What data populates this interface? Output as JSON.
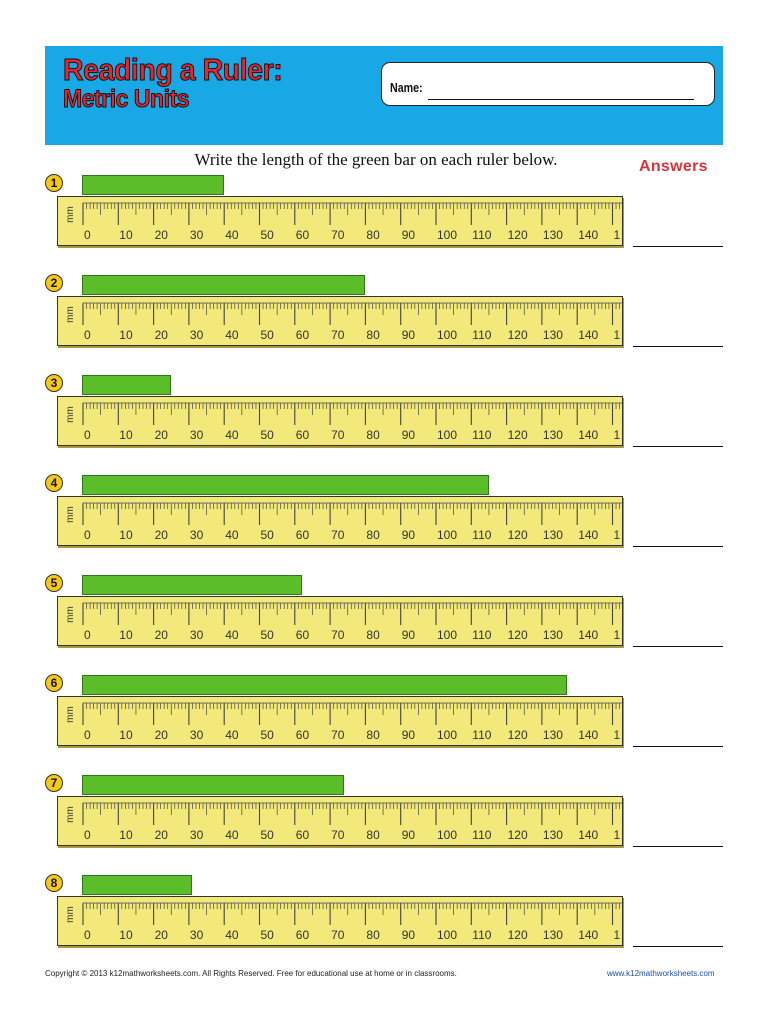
{
  "header": {
    "title_line1": "Reading a Ruler:",
    "title_line2": "Metric Units",
    "name_label": "Name:"
  },
  "instructions": "Write the length of the green bar on each ruler below.",
  "answers_heading": "Answers",
  "ruler": {
    "unit": "mm",
    "labels": [
      "0",
      "10",
      "20",
      "30",
      "40",
      "50",
      "60",
      "70",
      "80",
      "90",
      "100",
      "110",
      "120",
      "130",
      "140",
      "1"
    ]
  },
  "problems": [
    {
      "number": "1",
      "bar_length_mm": 40
    },
    {
      "number": "2",
      "bar_length_mm": 80
    },
    {
      "number": "3",
      "bar_length_mm": 25
    },
    {
      "number": "4",
      "bar_length_mm": 115
    },
    {
      "number": "5",
      "bar_length_mm": 62
    },
    {
      "number": "6",
      "bar_length_mm": 137
    },
    {
      "number": "7",
      "bar_length_mm": 74
    },
    {
      "number": "8",
      "bar_length_mm": 31
    }
  ],
  "colors": {
    "header_bg": "#19a8e6",
    "title_red": "#e8262c",
    "bar_green": "#5cbd2a",
    "ruler_yellow": "#f2e97a",
    "badge_yellow": "#f6c915",
    "answers_red": "#d9323a"
  },
  "footer": {
    "copyright": "Copyright © 2013  k12mathworksheets.com.  All Rights Reserved.  Free for educational use at home or in classrooms.",
    "website": "www.k12mathworksheets.com"
  }
}
